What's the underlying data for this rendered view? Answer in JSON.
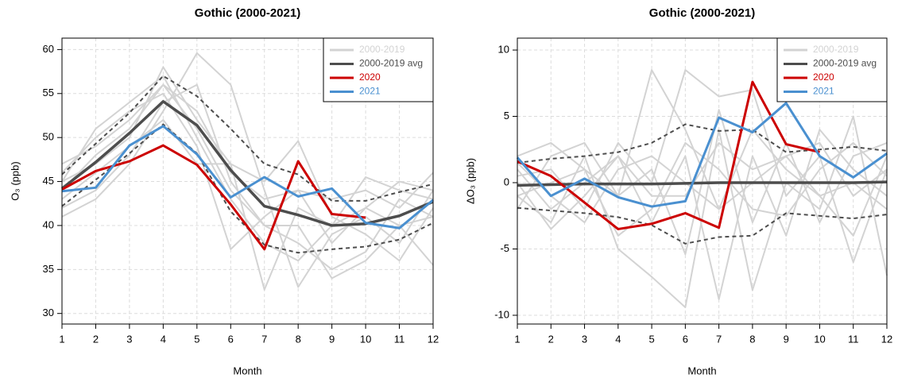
{
  "chart_data": [
    {
      "type": "line",
      "title": "Gothic (2000-2021)",
      "xlabel": "Month",
      "ylabel": "O₃ (ppb)",
      "x": [
        1,
        2,
        3,
        4,
        5,
        6,
        7,
        8,
        9,
        10,
        11,
        12
      ],
      "xlim": [
        1,
        12
      ],
      "xticks": [
        1,
        2,
        3,
        4,
        5,
        6,
        7,
        8,
        9,
        10,
        11,
        12
      ],
      "ylim": [
        28.8,
        61.3
      ],
      "yticks": [
        30,
        35,
        40,
        45,
        50,
        55,
        60
      ],
      "grid": true,
      "legend": "topright",
      "series": [
        {
          "name": "2000-2019",
          "color": "#d3d3d3",
          "values": [
            [
              47,
              49,
              52,
              56,
              53,
              46,
              43,
              44,
              38,
              42,
              40,
              41
            ],
            [
              42,
              44,
              48,
              54,
              56,
              45,
              40,
              38,
              35,
              37,
              43,
              41
            ],
            [
              45,
              47,
              50,
              58,
              52,
              47,
              32.7,
              42,
              40,
              45.5,
              44,
              43
            ],
            [
              41,
              43,
              47,
              53,
              59.6,
              56,
              44,
              33,
              39,
              41,
              38,
              44
            ],
            [
              46,
              50,
              53,
              55,
              49,
              37.3,
              41,
              44,
              43,
              44,
              42,
              46
            ],
            [
              44,
              48,
              51,
              56,
              51,
              44,
              40,
              40,
              34,
              36,
              40,
              35.5
            ],
            [
              43,
              46,
              49,
              52,
              47,
              47,
              45,
              49.6,
              41,
              39,
              36,
              42
            ],
            [
              45,
              51,
              54,
              57,
              50,
              43,
              38,
              36,
              40,
              42,
              45,
              44
            ]
          ]
        },
        {
          "name": "2000-2019 avg",
          "color": "#4d4d4d",
          "values": [
            44.2,
            47.2,
            50.5,
            54.1,
            51.4,
            46.3,
            42.2,
            41.2,
            40.0,
            40.2,
            41.1,
            42.7
          ]
        },
        {
          "name": "2020",
          "color": "#cc0000",
          "values": [
            44.1,
            46.2,
            47.3,
            49.1,
            46.9,
            42.4,
            37.3,
            47.3,
            41.3,
            40.9,
            null,
            null
          ]
        },
        {
          "name": "2021",
          "color": "#4a90d0",
          "values": [
            43.9,
            44.3,
            49.1,
            51.3,
            48.1,
            43.2,
            45.5,
            43.3,
            44.2,
            40.3,
            39.7,
            42.9
          ]
        }
      ],
      "band": {
        "color": "#4d4d4d",
        "upper": [
          45.8,
          49.3,
          52.8,
          57.0,
          54.7,
          51.0,
          47.0,
          45.8,
          42.8,
          42.8,
          43.8,
          44.7
        ],
        "lower": [
          42.2,
          45.2,
          48.2,
          51.5,
          48.2,
          41.6,
          37.8,
          36.9,
          37.3,
          37.6,
          38.4,
          40.3
        ]
      }
    },
    {
      "type": "line",
      "title": "Gothic (2000-2021)",
      "xlabel": "Month",
      "ylabel": "ΔO₃ (ppb)",
      "x": [
        1,
        2,
        3,
        4,
        5,
        6,
        7,
        8,
        9,
        10,
        11,
        12
      ],
      "xlim": [
        1,
        12
      ],
      "xticks": [
        1,
        2,
        3,
        4,
        5,
        6,
        7,
        8,
        9,
        10,
        11,
        12
      ],
      "ylim": [
        -10.66,
        10.9
      ],
      "yticks": [
        -10,
        -5,
        0,
        5,
        10
      ],
      "grid": true,
      "legend": "topright",
      "series": [
        {
          "name": "2000-2019",
          "color": "#d3d3d3",
          "values": [
            [
              2,
              3,
              1,
              -1,
              8.5,
              4,
              -2,
              0,
              2,
              3,
              -1,
              1
            ],
            [
              -1,
              -3,
              2,
              -5,
              -7.1,
              -9.4,
              4,
              -8.1,
              0,
              -2,
              5,
              -7
            ],
            [
              0.5,
              1,
              -2,
              3,
              0,
              8.5,
              6.5,
              7,
              -1,
              2,
              -6,
              1
            ],
            [
              1,
              -2,
              0,
              2,
              -3,
              2,
              -8.8,
              2,
              -4,
              4,
              1,
              -1
            ],
            [
              -2,
              2,
              3,
              -1,
              1,
              -5.4,
              5.5,
              -3,
              3,
              -3,
              2,
              3
            ],
            [
              1.5,
              -1,
              -3,
              1,
              2,
              0,
              -2,
              4,
              1,
              -1,
              0,
              -2
            ],
            [
              -1,
              0,
              1,
              -4,
              -2,
              3,
              1,
              -2,
              -2.5,
              1,
              3,
              0.5
            ],
            [
              0,
              -3.5,
              -1,
              2,
              -1,
              -1,
              3,
              1,
              2,
              -1,
              -4,
              2
            ]
          ]
        },
        {
          "name": "2000-2019 avg",
          "color": "#4d4d4d",
          "values": [
            -0.2,
            -0.15,
            -0.1,
            -0.1,
            -0.1,
            -0.05,
            0,
            0,
            0,
            0,
            0,
            0.05
          ]
        },
        {
          "name": "2020",
          "color": "#cc0000",
          "values": [
            1.6,
            0.5,
            -1.5,
            -3.5,
            -3.1,
            -2.3,
            -3.4,
            7.6,
            2.9,
            2.3,
            null,
            null
          ]
        },
        {
          "name": "2021",
          "color": "#4a90d0",
          "values": [
            1.9,
            -1.0,
            0.3,
            -1.1,
            -1.8,
            -1.4,
            4.9,
            3.8,
            6.0,
            2.0,
            0.4,
            2.2
          ]
        }
      ],
      "band": {
        "color": "#4d4d4d",
        "upper": [
          1.5,
          1.8,
          2.0,
          2.3,
          3.0,
          4.4,
          3.9,
          4.0,
          2.3,
          2.5,
          2.7,
          2.4
        ],
        "lower": [
          -1.9,
          -2.1,
          -2.3,
          -2.6,
          -3.2,
          -4.6,
          -4.1,
          -4.0,
          -2.3,
          -2.5,
          -2.7,
          -2.4
        ]
      }
    }
  ]
}
